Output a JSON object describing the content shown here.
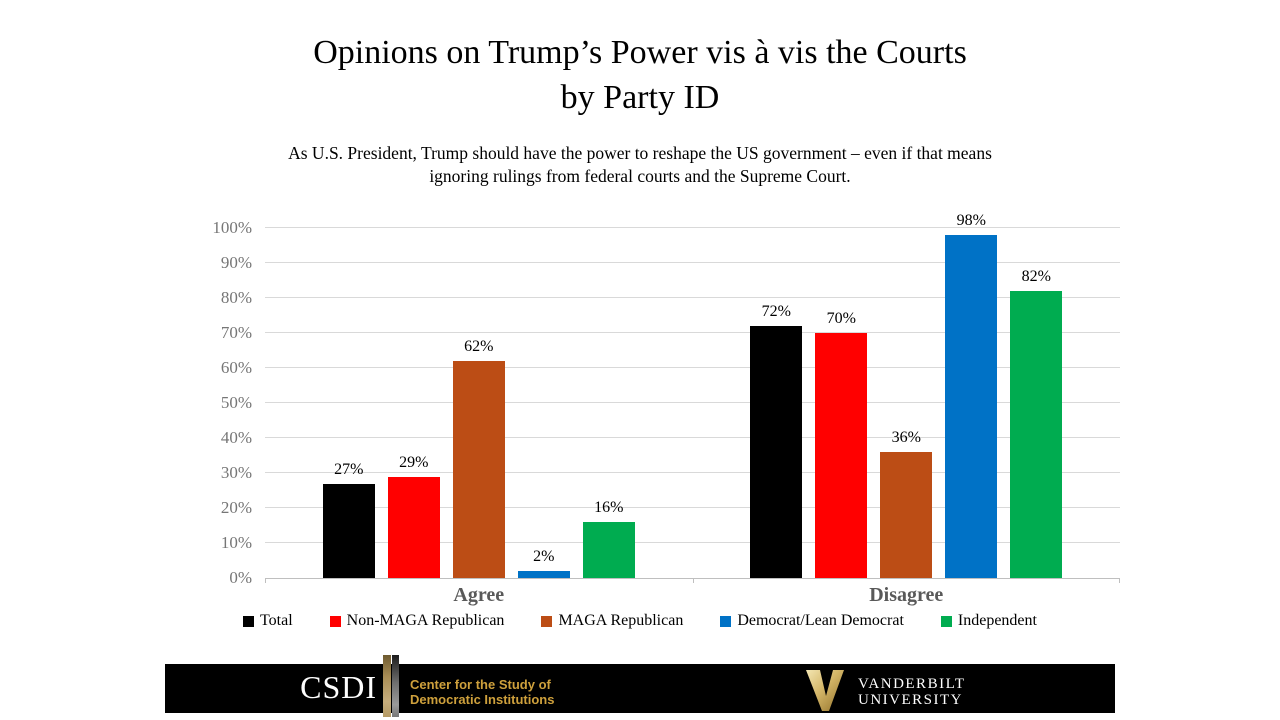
{
  "title": "Opinions on Trump’s Power vis à vis the Courts\nby Party ID",
  "subtitle": "As U.S. President, Trump should have the power to reshape the US government – even if that means\nignoring rulings from federal courts and the Supreme Court.",
  "chart_data": {
    "type": "bar",
    "categories": [
      "Agree",
      "Disagree"
    ],
    "series": [
      {
        "name": "Total",
        "color": "#000000",
        "values": [
          27,
          72
        ]
      },
      {
        "name": "Non-MAGA Republican",
        "color": "#FF0000",
        "values": [
          29,
          70
        ]
      },
      {
        "name": "MAGA Republican",
        "color": "#BC4D15",
        "values": [
          62,
          36
        ]
      },
      {
        "name": "Democrat/Lean Democrat",
        "color": "#0072C6",
        "values": [
          2,
          98
        ]
      },
      {
        "name": "Independent",
        "color": "#00AC50",
        "values": [
          16,
          82
        ]
      }
    ],
    "ylim": [
      0,
      100
    ],
    "ytick_step": 10,
    "ytick_suffix": "%",
    "value_label_suffix": "%",
    "grid": true,
    "legend_position": "bottom"
  },
  "footer": {
    "csdi": {
      "acronym": "CSDI",
      "name": "Center for the Study of\nDemocratic Institutions",
      "gold_color": "#CEA03C"
    },
    "vanderbilt": {
      "initial": "V",
      "name": "VANDERBILT\nUNIVERSITY"
    }
  }
}
